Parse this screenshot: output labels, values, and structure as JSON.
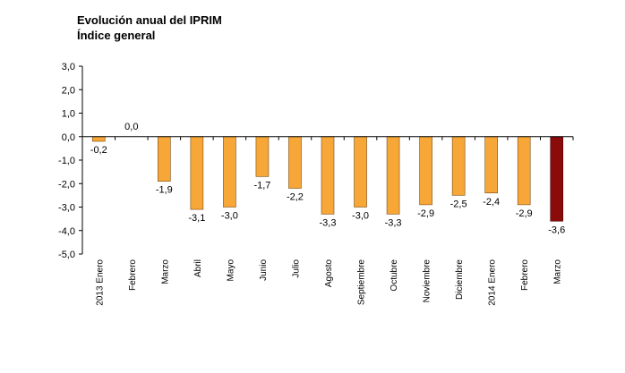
{
  "chart_data": {
    "type": "bar",
    "title": "Evolución anual del IPRIM",
    "subtitle": "Índice general",
    "xlabel": "",
    "ylabel": "",
    "ylim": [
      -5.0,
      3.0
    ],
    "ytick_step": 1.0,
    "grid": false,
    "legend": "none",
    "categories": [
      "2013 Enero",
      "Febrero",
      "Marzo",
      "Abril",
      "Mayo",
      "Junio",
      "Julio",
      "Agosto",
      "Septiembre",
      "Octubre",
      "Noviembre",
      "Diciembre",
      "2014 Enero",
      "Febrero",
      "Marzo"
    ],
    "values": [
      -0.2,
      0.0,
      -1.9,
      -3.1,
      -3.0,
      -1.7,
      -2.2,
      -3.3,
      -3.0,
      -3.3,
      -2.9,
      -2.5,
      -2.4,
      -2.9,
      -3.6
    ],
    "value_labels": [
      "-0,2",
      "0,0",
      "-1,9",
      "-3,1",
      "-3,0",
      "-1,7",
      "-2,2",
      "-3,3",
      "-3,0",
      "-3,3",
      "-2,9",
      "-2,5",
      "-2,4",
      "-2,9",
      "-3,6"
    ],
    "ytick_labels": [
      "3,0",
      "2,0",
      "1,0",
      "0,0",
      "-1,0",
      "-2,0",
      "-3,0",
      "-4,0",
      "-5,0"
    ],
    "colors": {
      "bar": "#F7A638",
      "bar_highlight": "#8B0A0A",
      "bar_edge": "#7a4a10",
      "axis": "#000000"
    },
    "highlight_index": 14
  }
}
